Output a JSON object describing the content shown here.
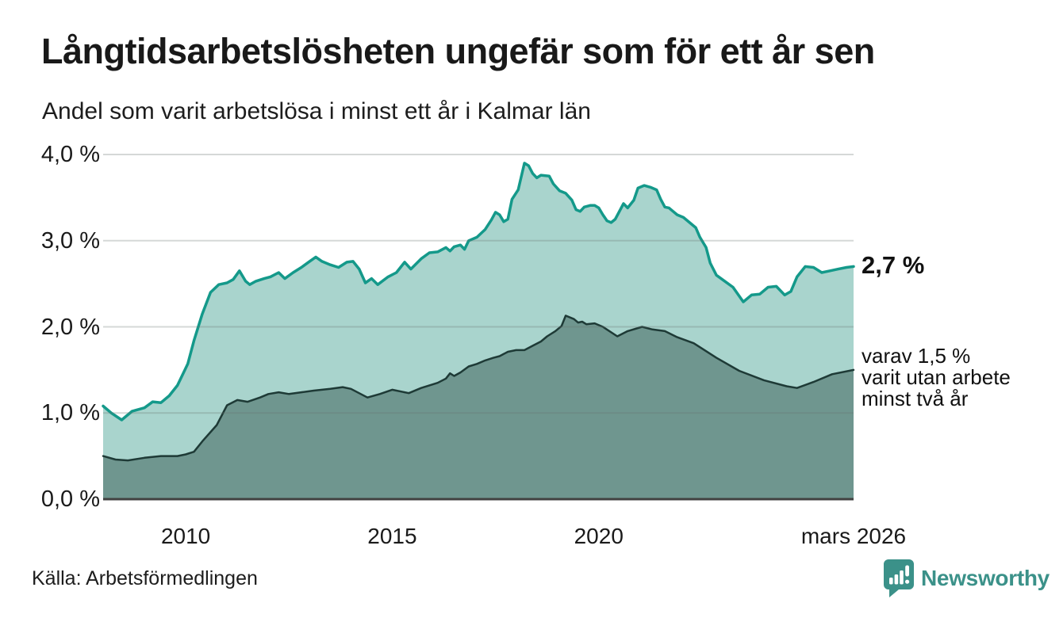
{
  "header": {
    "title": "Långtidsarbetslösheten ungefär som för ett år sen",
    "subtitle": "Andel som varit arbetslösa i minst ett år i Kalmar län"
  },
  "chart_data": {
    "type": "area",
    "title": "Långtidsarbetslösheten ungefär som för ett år sen",
    "subtitle": "Andel som varit arbetslösa i minst ett år i Kalmar län",
    "grid": true,
    "legend_position": "none",
    "x_axis": {
      "min": 2008.0,
      "max": 2026.17,
      "ticks": [
        {
          "value": 2010,
          "label": "2010"
        },
        {
          "value": 2015,
          "label": "2015"
        },
        {
          "value": 2020,
          "label": "2020"
        },
        {
          "value": 2026.17,
          "label": "mars 2026"
        }
      ]
    },
    "y_axis": {
      "min": 0.0,
      "max": 4.0,
      "unit": "%",
      "ticks": [
        {
          "value": 0,
          "label": "0,0 %"
        },
        {
          "value": 1,
          "label": "1,0 %"
        },
        {
          "value": 2,
          "label": "2,0 %"
        },
        {
          "value": 3,
          "label": "3,0 %"
        },
        {
          "value": 4,
          "label": "4,0 %"
        }
      ]
    },
    "series": [
      {
        "id": "minst-ett-ar",
        "name": "Andel som varit arbetslösa i minst ett år",
        "color": "#14998a",
        "fill": "#a9d4cd",
        "stroke_width": 3.5,
        "latest_value": "2,7 %",
        "points": [
          [
            2008.0,
            1.08
          ],
          [
            2008.2,
            1.0
          ],
          [
            2008.45,
            0.92
          ],
          [
            2008.7,
            1.02
          ],
          [
            2009.0,
            1.06
          ],
          [
            2009.2,
            1.13
          ],
          [
            2009.4,
            1.12
          ],
          [
            2009.6,
            1.2
          ],
          [
            2009.8,
            1.32
          ],
          [
            2010.05,
            1.57
          ],
          [
            2010.2,
            1.84
          ],
          [
            2010.4,
            2.15
          ],
          [
            2010.6,
            2.4
          ],
          [
            2010.8,
            2.49
          ],
          [
            2011.0,
            2.51
          ],
          [
            2011.15,
            2.55
          ],
          [
            2011.3,
            2.65
          ],
          [
            2011.45,
            2.53
          ],
          [
            2011.55,
            2.49
          ],
          [
            2011.7,
            2.53
          ],
          [
            2011.9,
            2.56
          ],
          [
            2012.05,
            2.58
          ],
          [
            2012.25,
            2.63
          ],
          [
            2012.4,
            2.56
          ],
          [
            2012.6,
            2.63
          ],
          [
            2012.8,
            2.69
          ],
          [
            2013.0,
            2.76
          ],
          [
            2013.15,
            2.81
          ],
          [
            2013.3,
            2.76
          ],
          [
            2013.5,
            2.72
          ],
          [
            2013.7,
            2.69
          ],
          [
            2013.9,
            2.75
          ],
          [
            2014.05,
            2.76
          ],
          [
            2014.2,
            2.67
          ],
          [
            2014.35,
            2.51
          ],
          [
            2014.5,
            2.56
          ],
          [
            2014.65,
            2.49
          ],
          [
            2014.9,
            2.58
          ],
          [
            2015.1,
            2.63
          ],
          [
            2015.3,
            2.75
          ],
          [
            2015.45,
            2.67
          ],
          [
            2015.7,
            2.79
          ],
          [
            2015.9,
            2.86
          ],
          [
            2016.1,
            2.87
          ],
          [
            2016.3,
            2.92
          ],
          [
            2016.4,
            2.88
          ],
          [
            2016.5,
            2.93
          ],
          [
            2016.65,
            2.95
          ],
          [
            2016.75,
            2.9
          ],
          [
            2016.85,
            3.0
          ],
          [
            2017.05,
            3.04
          ],
          [
            2017.25,
            3.13
          ],
          [
            2017.4,
            3.24
          ],
          [
            2017.5,
            3.33
          ],
          [
            2017.6,
            3.3
          ],
          [
            2017.7,
            3.22
          ],
          [
            2017.8,
            3.25
          ],
          [
            2017.9,
            3.48
          ],
          [
            2018.05,
            3.59
          ],
          [
            2018.2,
            3.9
          ],
          [
            2018.3,
            3.87
          ],
          [
            2018.4,
            3.78
          ],
          [
            2018.5,
            3.73
          ],
          [
            2018.6,
            3.76
          ],
          [
            2018.8,
            3.75
          ],
          [
            2018.9,
            3.66
          ],
          [
            2019.05,
            3.58
          ],
          [
            2019.2,
            3.55
          ],
          [
            2019.35,
            3.47
          ],
          [
            2019.45,
            3.36
          ],
          [
            2019.55,
            3.34
          ],
          [
            2019.65,
            3.39
          ],
          [
            2019.8,
            3.41
          ],
          [
            2019.9,
            3.41
          ],
          [
            2020.0,
            3.38
          ],
          [
            2020.1,
            3.3
          ],
          [
            2020.2,
            3.23
          ],
          [
            2020.3,
            3.21
          ],
          [
            2020.4,
            3.25
          ],
          [
            2020.6,
            3.43
          ],
          [
            2020.7,
            3.38
          ],
          [
            2020.85,
            3.47
          ],
          [
            2020.95,
            3.61
          ],
          [
            2021.1,
            3.64
          ],
          [
            2021.25,
            3.62
          ],
          [
            2021.4,
            3.59
          ],
          [
            2021.5,
            3.48
          ],
          [
            2021.6,
            3.39
          ],
          [
            2021.7,
            3.38
          ],
          [
            2021.8,
            3.34
          ],
          [
            2021.9,
            3.3
          ],
          [
            2022.05,
            3.27
          ],
          [
            2022.2,
            3.21
          ],
          [
            2022.35,
            3.15
          ],
          [
            2022.45,
            3.04
          ],
          [
            2022.6,
            2.92
          ],
          [
            2022.7,
            2.74
          ],
          [
            2022.85,
            2.6
          ],
          [
            2023.05,
            2.53
          ],
          [
            2023.25,
            2.46
          ],
          [
            2023.5,
            2.29
          ],
          [
            2023.7,
            2.37
          ],
          [
            2023.9,
            2.38
          ],
          [
            2024.1,
            2.46
          ],
          [
            2024.3,
            2.47
          ],
          [
            2024.5,
            2.37
          ],
          [
            2024.65,
            2.41
          ],
          [
            2024.8,
            2.58
          ],
          [
            2025.0,
            2.7
          ],
          [
            2025.2,
            2.69
          ],
          [
            2025.4,
            2.63
          ],
          [
            2025.6,
            2.65
          ],
          [
            2025.8,
            2.67
          ],
          [
            2026.0,
            2.69
          ],
          [
            2026.17,
            2.7
          ]
        ]
      },
      {
        "id": "minst-tva-ar",
        "name": "varav varit utan arbete minst två år",
        "color": "#1e3a36",
        "fill": "#6f968f",
        "stroke_width": 2.5,
        "latest_value": "1,5 %",
        "points": [
          [
            2008.0,
            0.5
          ],
          [
            2008.3,
            0.46
          ],
          [
            2008.6,
            0.45
          ],
          [
            2009.0,
            0.48
          ],
          [
            2009.4,
            0.5
          ],
          [
            2009.8,
            0.5
          ],
          [
            2010.0,
            0.52
          ],
          [
            2010.2,
            0.55
          ],
          [
            2010.4,
            0.67
          ],
          [
            2010.75,
            0.86
          ],
          [
            2011.0,
            1.09
          ],
          [
            2011.25,
            1.15
          ],
          [
            2011.5,
            1.13
          ],
          [
            2011.8,
            1.18
          ],
          [
            2012.0,
            1.22
          ],
          [
            2012.25,
            1.24
          ],
          [
            2012.5,
            1.22
          ],
          [
            2012.8,
            1.24
          ],
          [
            2013.1,
            1.26
          ],
          [
            2013.5,
            1.28
          ],
          [
            2013.8,
            1.3
          ],
          [
            2014.0,
            1.28
          ],
          [
            2014.4,
            1.18
          ],
          [
            2014.7,
            1.22
          ],
          [
            2015.0,
            1.27
          ],
          [
            2015.4,
            1.23
          ],
          [
            2015.7,
            1.29
          ],
          [
            2015.9,
            1.32
          ],
          [
            2016.1,
            1.35
          ],
          [
            2016.3,
            1.4
          ],
          [
            2016.4,
            1.46
          ],
          [
            2016.5,
            1.43
          ],
          [
            2016.65,
            1.47
          ],
          [
            2016.85,
            1.54
          ],
          [
            2017.05,
            1.57
          ],
          [
            2017.25,
            1.61
          ],
          [
            2017.45,
            1.64
          ],
          [
            2017.6,
            1.66
          ],
          [
            2017.8,
            1.71
          ],
          [
            2018.0,
            1.73
          ],
          [
            2018.2,
            1.73
          ],
          [
            2018.4,
            1.78
          ],
          [
            2018.6,
            1.83
          ],
          [
            2018.75,
            1.89
          ],
          [
            2018.95,
            1.95
          ],
          [
            2019.1,
            2.01
          ],
          [
            2019.2,
            2.13
          ],
          [
            2019.4,
            2.09
          ],
          [
            2019.5,
            2.05
          ],
          [
            2019.6,
            2.06
          ],
          [
            2019.7,
            2.03
          ],
          [
            2019.9,
            2.04
          ],
          [
            2020.1,
            2.0
          ],
          [
            2020.45,
            1.89
          ],
          [
            2020.7,
            1.95
          ],
          [
            2021.05,
            2.0
          ],
          [
            2021.3,
            1.97
          ],
          [
            2021.6,
            1.95
          ],
          [
            2021.9,
            1.88
          ],
          [
            2022.3,
            1.81
          ],
          [
            2022.85,
            1.64
          ],
          [
            2023.4,
            1.49
          ],
          [
            2024.0,
            1.38
          ],
          [
            2024.55,
            1.31
          ],
          [
            2024.8,
            1.29
          ],
          [
            2025.2,
            1.36
          ],
          [
            2025.65,
            1.45
          ],
          [
            2026.17,
            1.5
          ]
        ]
      }
    ],
    "annotations": {
      "latest_value": "2,7 %",
      "secondary": "varav 1,5 %\nvarit utan arbete\nminst två år"
    }
  },
  "footer": {
    "source": "Källa: Arbetsförmedlingen",
    "logo_text": "Newsworthy",
    "logo_color": "#3b9189"
  }
}
